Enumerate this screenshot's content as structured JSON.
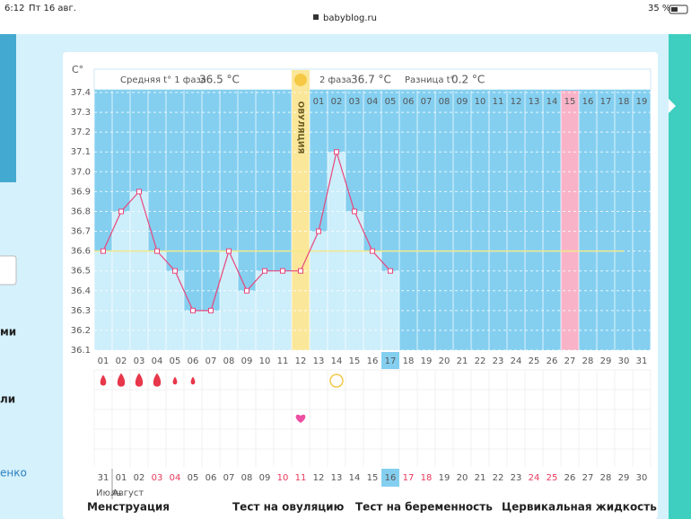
{
  "status_bar": {
    "time": "6:12",
    "date": "Пт 16 авг.",
    "url": "babyblog.ru",
    "battery": "35 %"
  },
  "sidebar": {
    "item1": "ми",
    "item2": "ли",
    "item3": "енко"
  },
  "stats": {
    "phase1_label": "Средняя t° 1 фаза",
    "phase1_value": "36.5 °C",
    "phase2_label": "2 фаза",
    "phase2_value": "36.7 °C",
    "diff_label": "Разница t°",
    "diff_value": "0.2 °C"
  },
  "chart_data": {
    "type": "line",
    "y_label": "C°",
    "ovulation_label": "ОВУЛЯЦИЯ",
    "categories": [
      "01",
      "02",
      "03",
      "04",
      "05",
      "06",
      "07",
      "08",
      "09",
      "10",
      "11",
      "12",
      "13",
      "14",
      "15",
      "16",
      "17",
      "18",
      "19",
      "20",
      "21",
      "22",
      "23",
      "24",
      "25",
      "26",
      "27",
      "28",
      "29",
      "30",
      "31"
    ],
    "series": [
      {
        "name": "t°",
        "color": "#e8477c",
        "values": [
          36.6,
          36.8,
          36.9,
          36.6,
          36.5,
          36.3,
          36.3,
          36.6,
          36.4,
          36.5,
          36.5,
          36.5,
          36.7,
          37.1,
          36.8,
          36.6,
          36.5,
          null,
          null,
          null,
          null,
          null,
          null,
          null,
          null,
          null,
          null,
          null,
          null,
          null,
          null
        ]
      }
    ],
    "ylim": [
      36.1,
      37.4
    ],
    "yticks": [
      {
        "value": 36.1,
        "label": "36.1"
      },
      36.2,
      36.3,
      36.4,
      36.5,
      36.6,
      36.7,
      36.8,
      36.9,
      {
        "value": 37,
        "label": "37.0"
      },
      37.1,
      37.2,
      37.3,
      37.4
    ],
    "grid": true,
    "coverline": 36.6,
    "coverline_color": "#f3e98a",
    "ovulation_day": "12",
    "ovulation_color": "#fbe79a",
    "current_day": "17",
    "highlight_day": "27",
    "highlight_color": "#f9b3c8",
    "phase2_days": [
      "01",
      "02",
      "03",
      "04",
      "05",
      "06",
      "07",
      "08",
      "09",
      "10",
      "11",
      "12",
      "13",
      "14",
      "15",
      "16",
      "17",
      "18",
      "19"
    ],
    "dates": [
      "31",
      "01",
      "02",
      "03",
      "04",
      "05",
      "06",
      "07",
      "08",
      "09",
      "10",
      "11",
      "12",
      "13",
      "14",
      "15",
      "16",
      "17",
      "18",
      "19",
      "20",
      "21",
      "22",
      "23",
      "24",
      "25",
      "26",
      "27",
      "28",
      "29",
      "30"
    ],
    "date_is_weekend": [
      false,
      false,
      false,
      true,
      true,
      false,
      false,
      false,
      false,
      false,
      true,
      true,
      false,
      false,
      false,
      false,
      false,
      true,
      true,
      false,
      false,
      false,
      false,
      false,
      true,
      true,
      false,
      false,
      false,
      false,
      false
    ],
    "months": [
      "Июль",
      "Август"
    ],
    "menstruation": [
      2,
      3,
      3,
      3,
      1,
      1
    ],
    "ovulation_test_day": "14",
    "intercourse_day": "12"
  },
  "legend": [
    "Менструация",
    "Тест на овуляцию",
    "Тест на беременность",
    "Цервикальная жидкость"
  ]
}
